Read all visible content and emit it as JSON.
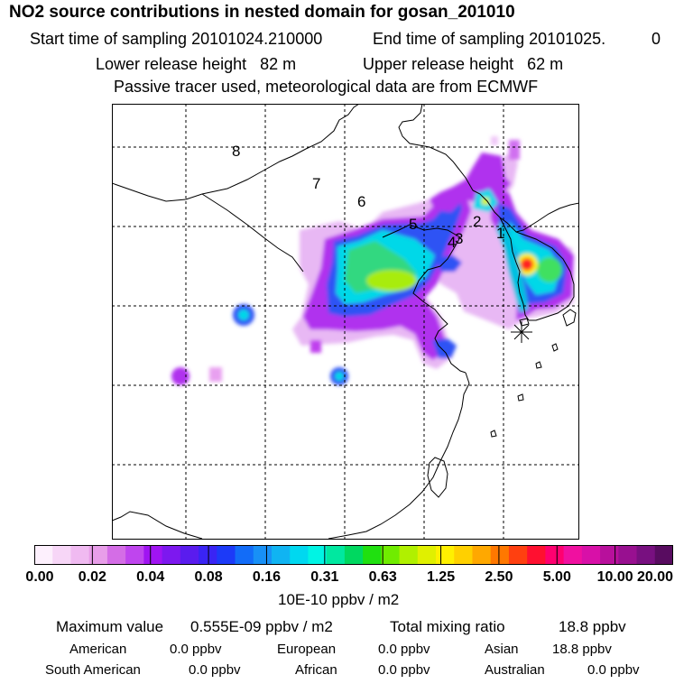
{
  "title": "NO2 source contributions in nested domain for gosan_201010",
  "sampling": {
    "start_label": "Start time of sampling 20101024.210000",
    "end_label": "End time of sampling 20101025.",
    "end_suffix": "0"
  },
  "release": {
    "lower_label": "Lower release height   82 m",
    "upper_label": "Upper release height   62 m"
  },
  "tracer_note": "Passive tracer used, meteorological data are from ECMWF",
  "map": {
    "region_labels": [
      "8",
      "7",
      "6",
      "5",
      "4",
      "3",
      "2",
      "1"
    ],
    "station_marker": "gosan-station-star"
  },
  "colorbar": {
    "colors": [
      "#fdf0fd",
      "#f7d6f7",
      "#f0baf1",
      "#e89ee9",
      "#d46de6",
      "#bf45ee",
      "#a014f2",
      "#7d18ef",
      "#5a1cee",
      "#3a24f4",
      "#1c3af8",
      "#126cf8",
      "#1890f6",
      "#10b4f2",
      "#00d8f0",
      "#00f4e4",
      "#00e8a0",
      "#00d860",
      "#20e010",
      "#70ec00",
      "#b0f000",
      "#e0f000",
      "#fff000",
      "#ffd000",
      "#ffa800",
      "#ff7800",
      "#ff4010",
      "#ff1030",
      "#ff0070",
      "#f010a0",
      "#d810a8",
      "#b8109c",
      "#981090",
      "#781080",
      "#580c60"
    ],
    "tick_labels": [
      "0.00",
      "0.02",
      "0.04",
      "0.08",
      "0.16",
      "0.31",
      "0.63",
      "1.25",
      "2.50",
      "5.00",
      "10.00",
      "20.00"
    ],
    "unit": "10E-10 ppbv / m2"
  },
  "summary": {
    "max_label": "Maximum value",
    "max_value": "0.555E-09 ppbv / m2",
    "total_label": "Total mixing ratio",
    "total_value": "18.8 ppbv",
    "regions": [
      {
        "name": "American",
        "value": "0.0 ppbv"
      },
      {
        "name": "European",
        "value": "0.0 ppbv"
      },
      {
        "name": "Asian",
        "value": "18.8 ppbv"
      },
      {
        "name": "South American",
        "value": "0.0 ppbv"
      },
      {
        "name": "African",
        "value": "0.0 ppbv"
      },
      {
        "name": "Australian",
        "value": "0.0 ppbv"
      }
    ]
  }
}
